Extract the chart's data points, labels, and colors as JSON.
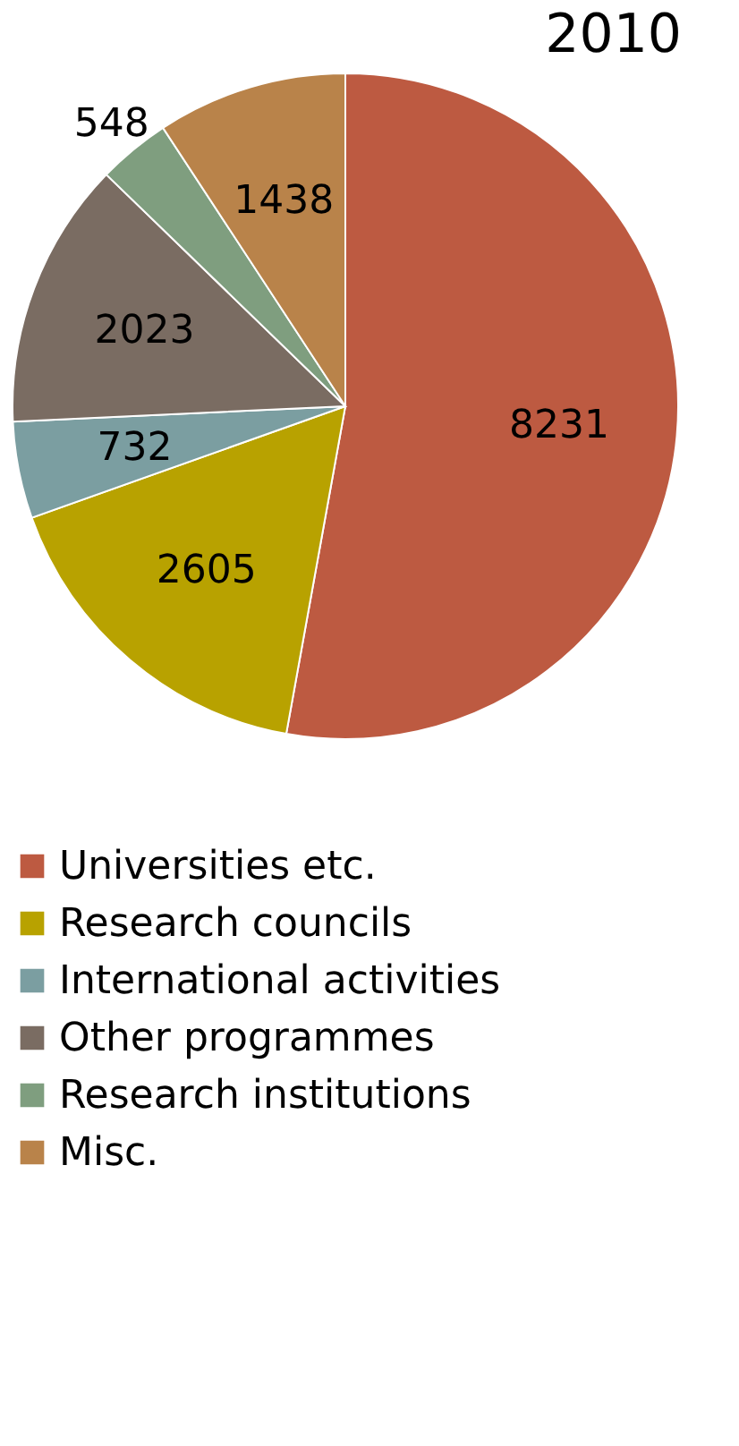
{
  "chart_data": {
    "type": "pie",
    "title": "2010",
    "categories": [
      "Universities etc.",
      "Research councils",
      "International activities",
      "Other programmes",
      "Research institutions",
      "Misc."
    ],
    "values": [
      8231,
      2605,
      732,
      2023,
      548,
      1438
    ],
    "colors": [
      "#bd5a41",
      "#b8a200",
      "#7b9ea1",
      "#7a6c62",
      "#7f9e7f",
      "#b9834a"
    ],
    "data_labels": true,
    "legend": "bottom"
  }
}
